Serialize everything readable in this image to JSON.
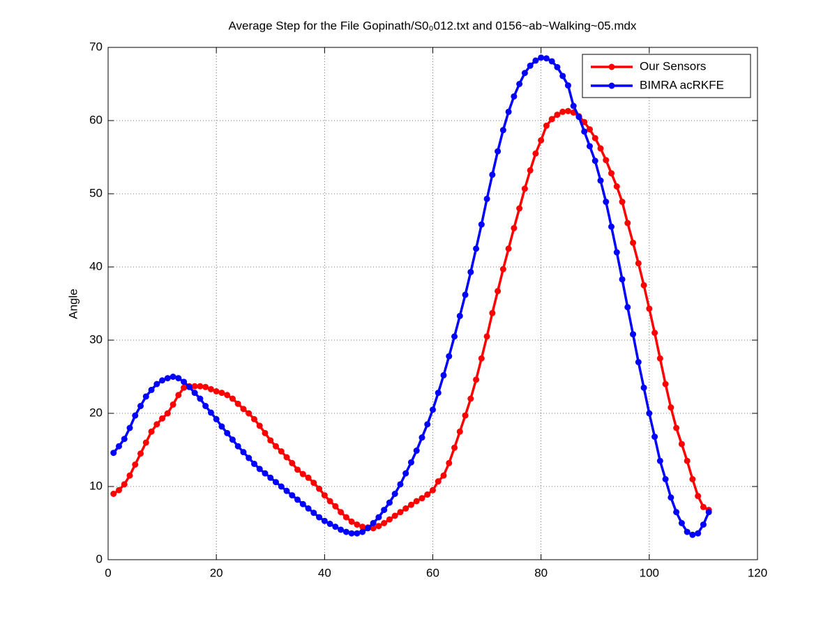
{
  "chart_data": {
    "type": "line",
    "title": "Average Step for the File Gopinath/S0₀012.txt and 0156~ab~Walking~05.mdx",
    "ylabel": "Angle",
    "x": [
      1,
      2,
      3,
      4,
      5,
      6,
      7,
      8,
      9,
      10,
      11,
      12,
      13,
      14,
      15,
      16,
      17,
      18,
      19,
      20,
      21,
      22,
      23,
      24,
      25,
      26,
      27,
      28,
      29,
      30,
      31,
      32,
      33,
      34,
      35,
      36,
      37,
      38,
      39,
      40,
      41,
      42,
      43,
      44,
      45,
      46,
      47,
      48,
      49,
      50,
      51,
      52,
      53,
      54,
      55,
      56,
      57,
      58,
      59,
      60,
      61,
      62,
      63,
      64,
      65,
      66,
      67,
      68,
      69,
      70,
      71,
      72,
      73,
      74,
      75,
      76,
      77,
      78,
      79,
      80,
      81,
      82,
      83,
      84,
      85,
      86,
      87,
      88,
      89,
      90,
      91,
      92,
      93,
      94,
      95,
      96,
      97,
      98,
      99,
      100,
      101,
      102,
      103,
      104,
      105,
      106,
      107,
      108,
      109,
      110,
      111
    ],
    "series": [
      {
        "name": "Our Sensors",
        "color": "#ff0000",
        "values": [
          9,
          9.5,
          10.3,
          11.5,
          13,
          14.5,
          16,
          17.5,
          18.5,
          19.3,
          20,
          21.2,
          22.5,
          23.5,
          23.7,
          23.7,
          23.7,
          23.6,
          23.3,
          23,
          22.8,
          22.5,
          22,
          21.3,
          20.6,
          20,
          19.2,
          18.3,
          17.3,
          16.3,
          15.5,
          14.8,
          14,
          13.2,
          12.3,
          11.7,
          11.2,
          10.5,
          9.7,
          8.8,
          8,
          7.3,
          6.5,
          5.8,
          5.2,
          4.8,
          4.5,
          4.4,
          4.3,
          4.6,
          5,
          5.5,
          6,
          6.5,
          7,
          7.5,
          8,
          8.4,
          8.9,
          9.5,
          10.7,
          11.5,
          13.2,
          15.3,
          17.5,
          19.7,
          22,
          24.6,
          27.5,
          30.5,
          33.7,
          36.7,
          39.7,
          42.5,
          45.3,
          48,
          50.7,
          53.2,
          55.5,
          57.3,
          59.3,
          60.2,
          60.8,
          61.2,
          61.3,
          61.1,
          60.6,
          59.8,
          58.8,
          57.6,
          56.2,
          54.6,
          52.8,
          51,
          48.9,
          46,
          43.3,
          40.5,
          37.5,
          34.3,
          31,
          27.5,
          24,
          20.8,
          18,
          15.8,
          13.5,
          11,
          8.7,
          7.2,
          6.8
        ]
      },
      {
        "name": "BIMRA acRKFE",
        "color": "#0000ff",
        "values": [
          14.6,
          15.5,
          16.5,
          18,
          19.7,
          21,
          22.3,
          23.2,
          24,
          24.5,
          24.8,
          25,
          24.8,
          24.3,
          23.6,
          22.8,
          22,
          21,
          20.1,
          19.2,
          18.2,
          17.3,
          16.4,
          15.5,
          14.7,
          13.9,
          13.1,
          12.4,
          11.8,
          11.2,
          10.6,
          10,
          9.4,
          8.8,
          8.2,
          7.6,
          7,
          6.4,
          5.8,
          5.3,
          4.9,
          4.5,
          4.1,
          3.8,
          3.6,
          3.6,
          3.8,
          4.3,
          5,
          5.8,
          6.8,
          7.8,
          9,
          10.3,
          11.8,
          13.3,
          14.9,
          16.7,
          18.5,
          20.5,
          22.8,
          25.2,
          27.8,
          30.5,
          33.3,
          36.2,
          39.3,
          42.5,
          45.8,
          49.3,
          52.6,
          55.8,
          58.7,
          61.2,
          63.3,
          65,
          66.5,
          67.5,
          68.2,
          68.6,
          68.5,
          68.1,
          67.3,
          66.1,
          64.8,
          62,
          60.5,
          58.5,
          56.5,
          54.5,
          51.8,
          48.9,
          45.5,
          42,
          38.3,
          34.5,
          30.8,
          27,
          23.5,
          20,
          16.8,
          13.5,
          11,
          8.5,
          6.5,
          5,
          3.8,
          3.4,
          3.6,
          4.8,
          6.5
        ]
      }
    ],
    "xlim": [
      0,
      120
    ],
    "xticks": [
      0,
      20,
      40,
      60,
      80,
      100,
      120
    ],
    "ylim": [
      0,
      70
    ],
    "yticks": [
      0,
      10,
      20,
      30,
      40,
      50,
      60,
      70
    ],
    "grid": true,
    "legend": "upper right"
  }
}
